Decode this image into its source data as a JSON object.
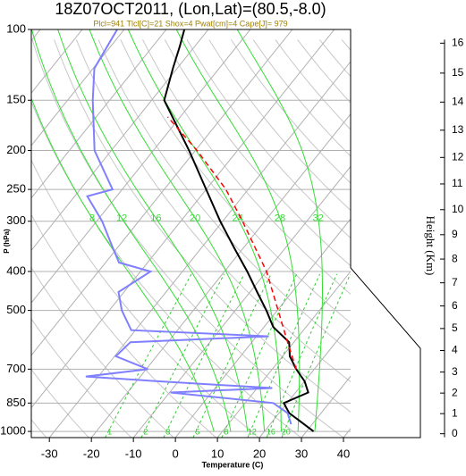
{
  "chart_data": {
    "type": "skewt",
    "title": "18Z07OCT2011, (Lon,Lat)=(80.5,-8.0)",
    "subtitle": "Plcl=941 Tlcl[C]=21 Shox=4 Pwat[cm]=4 Cape[J]= 979",
    "xlabel": "Temperature (C)",
    "ylabel": "P (hPa)",
    "y2label": "Height (Km)",
    "xlim": [
      -34.3,
      41.7
    ],
    "ylim": [
      1036,
      100
    ],
    "log_y": true,
    "grid": true,
    "xticks": [
      -30,
      -20,
      -10,
      0,
      10,
      20,
      30,
      40
    ],
    "yticks": [
      100,
      150,
      200,
      250,
      300,
      400,
      500,
      700,
      850,
      1000
    ],
    "y2ticks": [
      0,
      1,
      2,
      3,
      4,
      5,
      6,
      7,
      8,
      9,
      10,
      11,
      12,
      13,
      14,
      15,
      16
    ],
    "moist_adiabats": [
      8,
      12,
      16,
      20,
      24,
      28,
      32
    ],
    "mixing_ratios": [
      1,
      2,
      3,
      5,
      8,
      12,
      16,
      20
    ],
    "series": [
      {
        "name": "Temperature",
        "color": "#000000",
        "dash": false,
        "pressure": [
          1000,
          950,
          900,
          850,
          800,
          750,
          700,
          650,
          600,
          550,
          500,
          450,
          400,
          350,
          300,
          250,
          200,
          175,
          150,
          125,
          110,
          100
        ],
        "values": [
          31.7,
          27.2,
          22.4,
          19.2,
          23,
          20,
          15.7,
          11.7,
          8.9,
          2.2,
          -2.6,
          -8.3,
          -14.6,
          -22.1,
          -30.6,
          -40,
          -51.5,
          -58.7,
          -67,
          -71,
          -73.6,
          -75.7
        ]
      },
      {
        "name": "Dew point",
        "color": "#8080ff",
        "dash": false,
        "pressure": [
          960,
          900,
          850,
          800,
          780,
          750,
          730,
          700,
          650,
          600,
          580,
          560,
          500,
          450,
          400,
          380,
          350,
          300,
          260,
          250,
          200,
          150,
          125,
          100
        ],
        "values": [
          25,
          22,
          16.7,
          -9.8,
          13.6,
          -15,
          -33,
          -19.6,
          -29.7,
          -28.9,
          2.9,
          -31,
          -37,
          -41.3,
          -37.6,
          -46.8,
          -51,
          -58.7,
          -67,
          -62.3,
          -74,
          -84,
          -89.7,
          -91.7
        ]
      },
      {
        "name": "Parcel",
        "color": "#ff0000",
        "dash": true,
        "pressure": [
          700,
          600,
          500,
          400,
          300,
          250,
          200,
          165
        ],
        "values": [
          15.7,
          8.5,
          0.2,
          -10,
          -25.3,
          -35.3,
          -49.6,
          -63
        ]
      }
    ]
  }
}
